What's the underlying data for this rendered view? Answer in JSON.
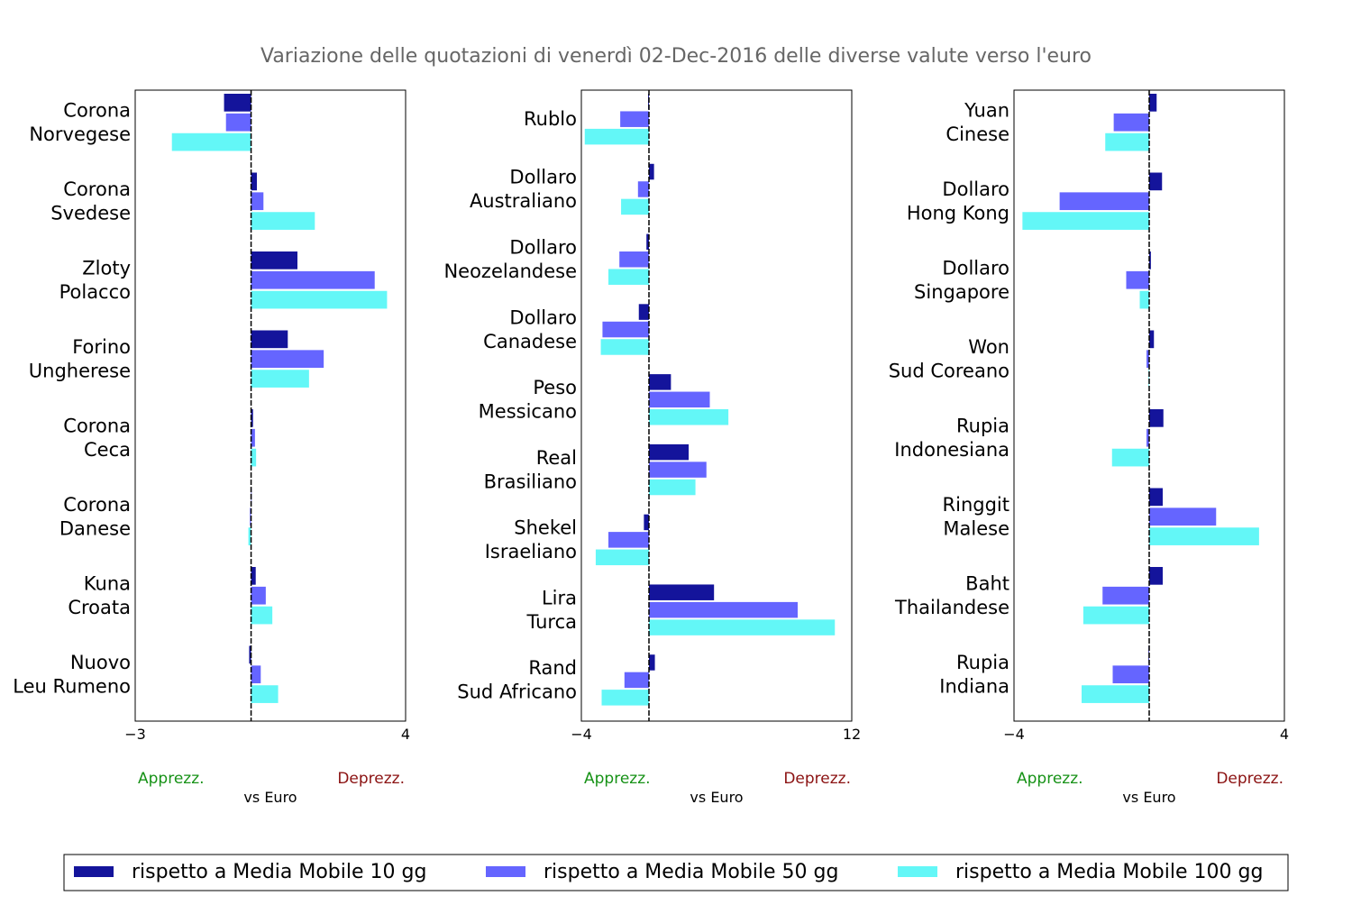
{
  "title": "Variazione delle quotazioni di venerdì 02-Dec-2016 delle diverse valute verso l'euro",
  "colors": {
    "s10": "#14149b",
    "s50": "#6565ff",
    "s100": "#63f7f7",
    "appreciation": "#179217",
    "depreciation": "#8b1212",
    "title": "#666666"
  },
  "legend": {
    "items": [
      {
        "label": "rispetto a Media Mobile 10 gg",
        "color": "#14149b"
      },
      {
        "label": "rispetto a Media Mobile 50 gg",
        "color": "#6565ff"
      },
      {
        "label": "rispetto a Media Mobile 100 gg",
        "color": "#63f7f7"
      }
    ]
  },
  "chart_data": [
    {
      "type": "bar",
      "orientation": "horizontal",
      "xlim": [
        -3,
        4
      ],
      "xticks": [
        "−3",
        "4"
      ],
      "xlabel": "vs Euro",
      "left_hint": "Apprezz.",
      "right_hint": "Deprezz.",
      "categories": [
        [
          "Corona",
          "Norvegese"
        ],
        [
          "Corona",
          "Svedese"
        ],
        [
          "Zloty",
          "Polacco"
        ],
        [
          "Forino",
          "Ungherese"
        ],
        [
          "Corona",
          "Ceca"
        ],
        [
          "Corona",
          "Danese"
        ],
        [
          "Kuna",
          "Croata"
        ],
        [
          "Nuovo",
          "Leu Rumeno"
        ]
      ],
      "series": [
        {
          "values": [
            -0.7,
            0.15,
            1.2,
            0.95,
            0.05,
            0.0,
            0.12,
            -0.05
          ]
        },
        {
          "values": [
            -0.65,
            0.32,
            3.2,
            1.88,
            0.1,
            -0.03,
            0.38,
            0.25
          ]
        },
        {
          "values": [
            -2.05,
            1.65,
            3.52,
            1.5,
            0.13,
            -0.07,
            0.55,
            0.7
          ]
        }
      ]
    },
    {
      "type": "bar",
      "orientation": "horizontal",
      "xlim": [
        -4,
        12
      ],
      "xticks": [
        "−4",
        "12"
      ],
      "xlabel": "vs Euro",
      "left_hint": "Apprezz.",
      "right_hint": "Deprezz.",
      "categories": [
        [
          "Rublo"
        ],
        [
          "Dollaro",
          "Australiano"
        ],
        [
          "Dollaro",
          "Neozelandese"
        ],
        [
          "Dollaro",
          "Canadese"
        ],
        [
          "Peso",
          "Messicano"
        ],
        [
          "Real",
          "Brasiliano"
        ],
        [
          "Shekel",
          "Israeliano"
        ],
        [
          "Lira",
          "Turca"
        ],
        [
          "Rand",
          "Sud Africano"
        ]
      ],
      "series": [
        {
          "values": [
            -0.05,
            0.3,
            -0.15,
            -0.6,
            1.3,
            2.35,
            -0.3,
            3.85,
            0.35
          ]
        },
        {
          "values": [
            -1.7,
            -0.65,
            -1.75,
            -2.75,
            3.6,
            3.4,
            -2.4,
            8.8,
            -1.45
          ]
        },
        {
          "values": [
            -3.8,
            -1.65,
            -2.4,
            -2.85,
            4.7,
            2.75,
            -3.15,
            11.0,
            -2.8
          ]
        }
      ]
    },
    {
      "type": "bar",
      "orientation": "horizontal",
      "xlim": [
        -4,
        4
      ],
      "xticks": [
        "−4",
        "4"
      ],
      "xlabel": "vs Euro",
      "left_hint": "Apprezz.",
      "right_hint": "Deprezz.",
      "categories": [
        [
          "Yuan",
          "Cinese"
        ],
        [
          "Dollaro",
          "Hong Kong"
        ],
        [
          "Dollaro",
          "Singapore"
        ],
        [
          "Won",
          "Sud Coreano"
        ],
        [
          "Rupia",
          "Indonesiana"
        ],
        [
          "Ringgit",
          "Malese"
        ],
        [
          "Baht",
          "Thailandese"
        ],
        [
          "Rupia",
          "Indiana"
        ]
      ],
      "series": [
        {
          "values": [
            0.22,
            0.38,
            0.05,
            0.14,
            0.42,
            0.4,
            0.4,
            -0.02
          ]
        },
        {
          "values": [
            -1.05,
            -2.65,
            -0.68,
            -0.08,
            -0.08,
            1.98,
            -1.38,
            -1.08
          ]
        },
        {
          "values": [
            -1.3,
            -3.75,
            -0.28,
            -0.02,
            -1.1,
            3.25,
            -1.95,
            -2.0
          ]
        }
      ]
    }
  ]
}
